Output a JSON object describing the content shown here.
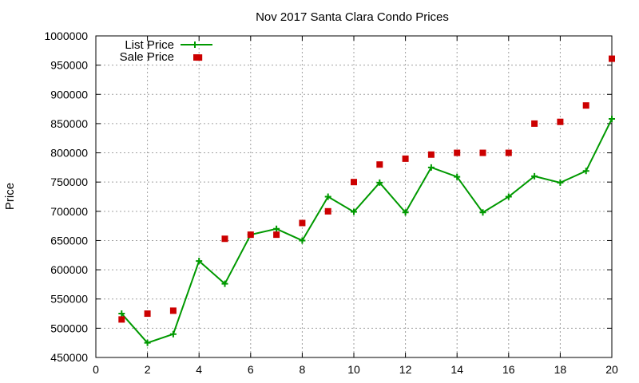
{
  "chart_data": {
    "type": "line",
    "title": "Nov 2017 Santa Clara Condo Prices",
    "xlabel": "",
    "ylabel": "Price",
    "xlim": [
      0,
      20
    ],
    "ylim": [
      450000,
      1000000
    ],
    "x_ticks": [
      0,
      2,
      4,
      6,
      8,
      10,
      12,
      14,
      16,
      18,
      20
    ],
    "y_ticks": [
      450000,
      500000,
      550000,
      600000,
      650000,
      700000,
      750000,
      800000,
      850000,
      900000,
      950000,
      1000000
    ],
    "grid": true,
    "legend_position": "top-left",
    "series": [
      {
        "name": "List Price",
        "style": "line+cross",
        "color": "#009900",
        "x": [
          1,
          2,
          3,
          4,
          5,
          6,
          7,
          8,
          9,
          10,
          11,
          12,
          13,
          14,
          15,
          16,
          17,
          18,
          19,
          20
        ],
        "y": [
          525000,
          475000,
          490000,
          615000,
          576000,
          660000,
          670000,
          650000,
          725000,
          699000,
          749000,
          698000,
          775000,
          759000,
          698000,
          725000,
          760000,
          749000,
          769000,
          858000
        ]
      },
      {
        "name": "Sale Price",
        "style": "square",
        "color": "#cc0000",
        "x": [
          1,
          2,
          3,
          4,
          5,
          6,
          7,
          8,
          9,
          10,
          11,
          12,
          13,
          14,
          15,
          16,
          17,
          18,
          19,
          20
        ],
        "y": [
          515000,
          525000,
          530000,
          963000,
          653000,
          660000,
          660000,
          680000,
          700000,
          750000,
          780000,
          790000,
          797000,
          800000,
          800000,
          800000,
          850000,
          853000,
          881000,
          961000
        ]
      }
    ]
  }
}
